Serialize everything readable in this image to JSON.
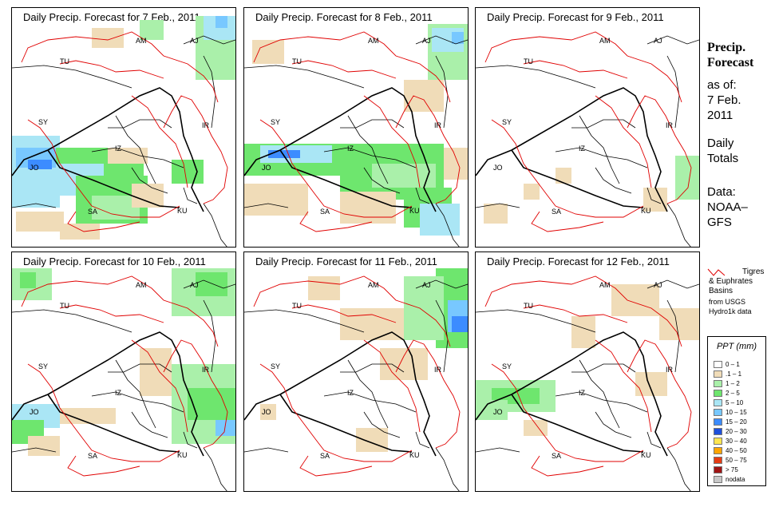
{
  "panels": [
    {
      "title": "Daily Precip. Forecast for  7 Feb., 2011"
    },
    {
      "title": "Daily Precip. Forecast for  8 Feb., 2011"
    },
    {
      "title": "Daily Precip. Forecast for  9 Feb., 2011"
    },
    {
      "title": "Daily Precip. Forecast for  10 Feb., 2011"
    },
    {
      "title": "Daily Precip. Forecast for  11 Feb., 2011"
    },
    {
      "title": "Daily Precip. Forecast for  12 Feb., 2011"
    }
  ],
  "countries": [
    "AM",
    "AJ",
    "TU",
    "SY",
    "IR",
    "JO",
    "IZ",
    "SA",
    "KU"
  ],
  "side": {
    "title_line1": "Precip.",
    "title_line2": "Forecast",
    "asof_label": "as of:",
    "date_line1": "7 Feb.",
    "date_line2": "2011",
    "totals_line1": "Daily",
    "totals_line2": "Totals",
    "data_line1": "Data:",
    "data_line2": "NOAA–",
    "data_line3": "GFS"
  },
  "basin_legend": {
    "line1": "Tigres",
    "line2": "& Euphrates",
    "line3": "Basins",
    "line4": "from USGS",
    "line5": "Hydro1k data"
  },
  "legend": {
    "title": "PPT (mm)",
    "items": [
      {
        "label": "0 – 1",
        "color": "#ffffff"
      },
      {
        "label": ".1 – 1",
        "color": "#f0dcb8"
      },
      {
        "label": "1 – 2",
        "color": "#aaf0aa"
      },
      {
        "label": "2 – 5",
        "color": "#6ee66e"
      },
      {
        "label": "5 – 10",
        "color": "#aae6f5"
      },
      {
        "label": "10 – 15",
        "color": "#78c8ff"
      },
      {
        "label": "15 – 20",
        "color": "#3c8cff"
      },
      {
        "label": "20 – 30",
        "color": "#1e50dc"
      },
      {
        "label": "30 – 40",
        "color": "#ffe650"
      },
      {
        "label": "40 – 50",
        "color": "#ffa500"
      },
      {
        "label": "50 – 75",
        "color": "#e63c14"
      },
      {
        "label": "> 75",
        "color": "#a01414"
      },
      {
        "label": "nodata",
        "color": "#c8c8c8"
      }
    ]
  }
}
